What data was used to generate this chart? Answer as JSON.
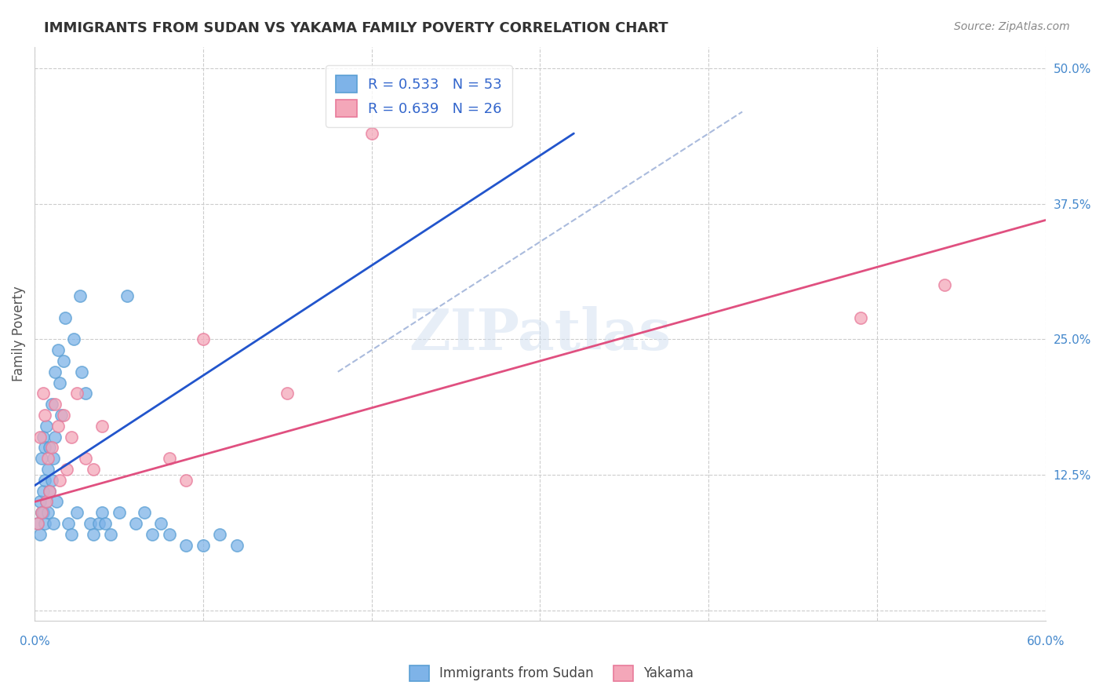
{
  "title": "IMMIGRANTS FROM SUDAN VS YAKAMA FAMILY POVERTY CORRELATION CHART",
  "source": "Source: ZipAtlas.com",
  "xlabel": "",
  "ylabel": "Family Poverty",
  "xlim": [
    0.0,
    0.6
  ],
  "ylim": [
    -0.01,
    0.52
  ],
  "xticks": [
    0.0,
    0.1,
    0.2,
    0.3,
    0.4,
    0.5,
    0.6
  ],
  "xticklabels": [
    "0.0%",
    "",
    "",
    "",
    "",
    "",
    "60.0%"
  ],
  "yticks_right": [
    0.0,
    0.125,
    0.25,
    0.375,
    0.5
  ],
  "ytick_labels_right": [
    "",
    "12.5%",
    "25.0%",
    "37.5%",
    "50.0%"
  ],
  "blue_color": "#7eb3e8",
  "blue_edge": "#5a9fd4",
  "pink_color": "#f4a7b9",
  "pink_edge": "#e87a9a",
  "blue_r": 0.533,
  "blue_n": 53,
  "pink_r": 0.639,
  "pink_n": 26,
  "watermark": "ZIPatlas",
  "legend_label_blue": "Immigrants from Sudan",
  "legend_label_pink": "Yakama",
  "blue_scatter_x": [
    0.002,
    0.003,
    0.003,
    0.004,
    0.004,
    0.005,
    0.005,
    0.005,
    0.006,
    0.006,
    0.006,
    0.007,
    0.007,
    0.008,
    0.008,
    0.009,
    0.009,
    0.01,
    0.01,
    0.011,
    0.011,
    0.012,
    0.012,
    0.013,
    0.014,
    0.015,
    0.016,
    0.017,
    0.018,
    0.02,
    0.022,
    0.023,
    0.025,
    0.027,
    0.028,
    0.03,
    0.033,
    0.035,
    0.038,
    0.04,
    0.042,
    0.045,
    0.05,
    0.055,
    0.06,
    0.065,
    0.07,
    0.075,
    0.08,
    0.09,
    0.1,
    0.11,
    0.12
  ],
  "blue_scatter_y": [
    0.08,
    0.1,
    0.07,
    0.09,
    0.14,
    0.11,
    0.16,
    0.09,
    0.12,
    0.15,
    0.08,
    0.17,
    0.1,
    0.13,
    0.09,
    0.11,
    0.15,
    0.19,
    0.12,
    0.14,
    0.08,
    0.22,
    0.16,
    0.1,
    0.24,
    0.21,
    0.18,
    0.23,
    0.27,
    0.08,
    0.07,
    0.25,
    0.09,
    0.29,
    0.22,
    0.2,
    0.08,
    0.07,
    0.08,
    0.09,
    0.08,
    0.07,
    0.09,
    0.29,
    0.08,
    0.09,
    0.07,
    0.08,
    0.07,
    0.06,
    0.06,
    0.07,
    0.06
  ],
  "pink_scatter_x": [
    0.002,
    0.003,
    0.004,
    0.005,
    0.006,
    0.007,
    0.008,
    0.009,
    0.01,
    0.012,
    0.014,
    0.015,
    0.017,
    0.019,
    0.022,
    0.025,
    0.03,
    0.035,
    0.04,
    0.08,
    0.09,
    0.1,
    0.15,
    0.2,
    0.49,
    0.54
  ],
  "pink_scatter_y": [
    0.08,
    0.16,
    0.09,
    0.2,
    0.18,
    0.1,
    0.14,
    0.11,
    0.15,
    0.19,
    0.17,
    0.12,
    0.18,
    0.13,
    0.16,
    0.2,
    0.14,
    0.13,
    0.17,
    0.14,
    0.12,
    0.25,
    0.2,
    0.44,
    0.27,
    0.3
  ],
  "blue_trendline_x": [
    0.0,
    0.32
  ],
  "blue_trendline_y": [
    0.115,
    0.44
  ],
  "pink_trendline_x": [
    0.0,
    0.6
  ],
  "pink_trendline_y": [
    0.1,
    0.36
  ],
  "grid_color": "#cccccc",
  "background_color": "#ffffff",
  "title_color": "#333333",
  "axis_label_color": "#555555",
  "tick_label_color": "#4488cc",
  "stat_label_color": "#3366cc"
}
